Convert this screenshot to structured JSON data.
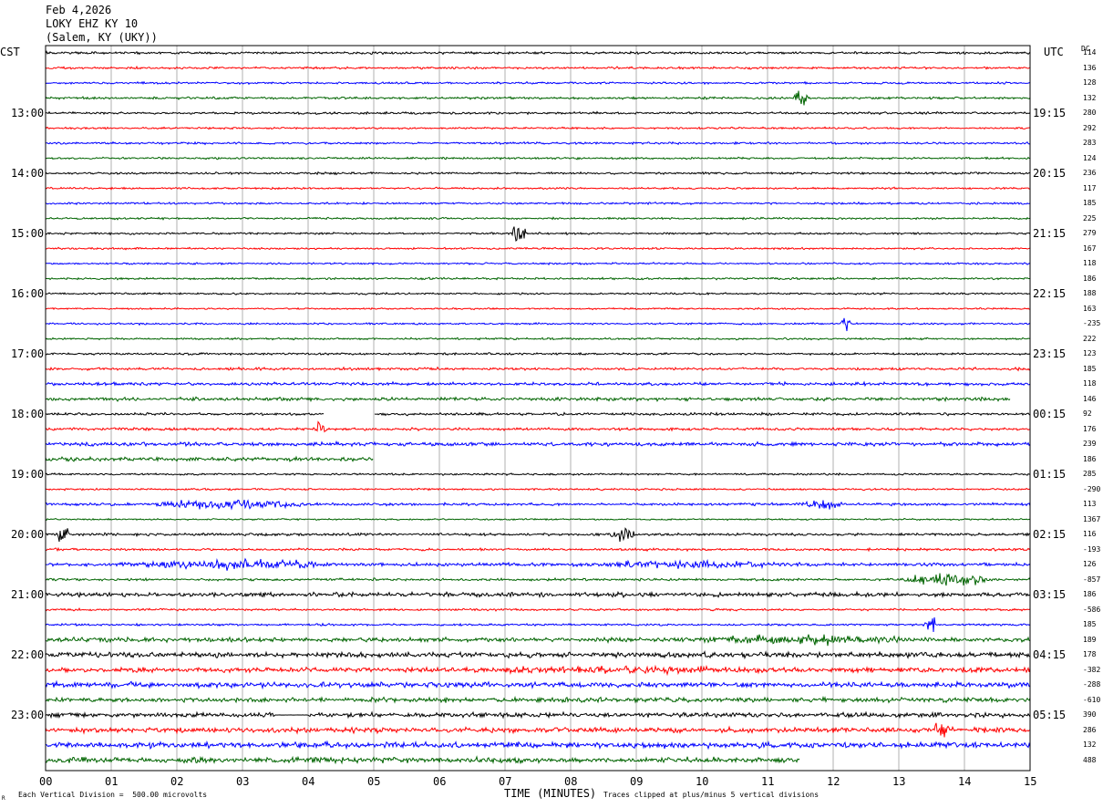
{
  "header": {
    "date": "Feb 4,2026",
    "station": "LOKY EHZ KY 10",
    "location": "(Salem, KY (UKY))"
  },
  "left_tz": "CST",
  "right_tz": "UTC",
  "dc_label": "DC",
  "footer": {
    "vertical_division": "Each Vertical Division =  500.00 microvolts",
    "x_title": "TIME (MINUTES)",
    "clip_note": "Traces clipped at plus/minus 5 vertical divisions",
    "corner_mark": "R"
  },
  "colors": {
    "trace_cycle": [
      "#000000",
      "#ff0000",
      "#0000ff",
      "#006400"
    ],
    "grid": "#b0b0b0",
    "background": "#ffffff"
  },
  "chart_data": {
    "type": "line",
    "subtype": "helicorder",
    "x_range": [
      0,
      15
    ],
    "xticks": [
      "00",
      "01",
      "02",
      "03",
      "04",
      "05",
      "06",
      "07",
      "08",
      "09",
      "10",
      "11",
      "12",
      "13",
      "14",
      "15"
    ],
    "xlabel": "TIME (MINUTES)",
    "row_count": 48,
    "left_time_labels": [
      {
        "row": 4,
        "text": "13:00"
      },
      {
        "row": 8,
        "text": "14:00"
      },
      {
        "row": 12,
        "text": "15:00"
      },
      {
        "row": 16,
        "text": "16:00"
      },
      {
        "row": 20,
        "text": "17:00"
      },
      {
        "row": 24,
        "text": "18:00"
      },
      {
        "row": 28,
        "text": "19:00"
      },
      {
        "row": 32,
        "text": "20:00"
      },
      {
        "row": 36,
        "text": "21:00"
      },
      {
        "row": 40,
        "text": "22:00"
      },
      {
        "row": 44,
        "text": "23:00"
      }
    ],
    "right_time_labels": [
      {
        "row": 4,
        "text": "19:15"
      },
      {
        "row": 8,
        "text": "20:15"
      },
      {
        "row": 12,
        "text": "21:15"
      },
      {
        "row": 16,
        "text": "22:15"
      },
      {
        "row": 20,
        "text": "23:15"
      },
      {
        "row": 24,
        "text": "00:15"
      },
      {
        "row": 28,
        "text": "01:15"
      },
      {
        "row": 32,
        "text": "02:15"
      },
      {
        "row": 36,
        "text": "03:15"
      },
      {
        "row": 40,
        "text": "04:15"
      },
      {
        "row": 44,
        "text": "05:15"
      }
    ],
    "dc_offsets": [
      "114",
      "136",
      "128",
      "132",
      "280",
      "292",
      "283",
      "124",
      "236",
      "117",
      "185",
      "225",
      "279",
      "167",
      "118",
      "186",
      "188",
      "163",
      "-235",
      "222",
      "123",
      "185",
      "118",
      "146",
      "92",
      "176",
      "239",
      "186",
      "285",
      "-290",
      "113",
      "1367",
      "116",
      "-193",
      "126",
      "-857",
      "186",
      "-586",
      "185",
      "189",
      "178",
      "-382",
      "-288",
      "-610",
      "390",
      "286",
      "132",
      "488"
    ],
    "row_noise": [
      0.9,
      0.8,
      0.75,
      0.85,
      0.85,
      0.7,
      0.8,
      0.75,
      0.8,
      0.7,
      0.75,
      0.75,
      0.75,
      0.7,
      0.7,
      0.75,
      0.7,
      0.65,
      0.7,
      0.75,
      0.8,
      1.0,
      1.2,
      1.3,
      1.0,
      1.0,
      1.4,
      1.4,
      0.7,
      0.7,
      1.0,
      0.6,
      1.0,
      0.9,
      1.3,
      0.9,
      1.6,
      0.8,
      0.8,
      1.6,
      2.0,
      1.8,
      2.0,
      1.7,
      1.8,
      1.9,
      2.1,
      2.0
    ],
    "events": [
      {
        "row": 3,
        "start_min": 11.4,
        "end_min": 11.75,
        "amp": 7
      },
      {
        "row": 12,
        "start_min": 7.1,
        "end_min": 7.4,
        "amp": 9
      },
      {
        "row": 18,
        "start_min": 12.1,
        "end_min": 12.35,
        "amp": 7
      },
      {
        "row": 25,
        "start_min": 4.1,
        "end_min": 4.35,
        "amp": 9
      },
      {
        "row": 30,
        "start_min": 1.5,
        "end_min": 5.0,
        "amp": 4
      },
      {
        "row": 30,
        "start_min": 11.4,
        "end_min": 12.5,
        "amp": 4
      },
      {
        "row": 32,
        "start_min": 0.15,
        "end_min": 0.45,
        "amp": 8
      },
      {
        "row": 32,
        "start_min": 8.6,
        "end_min": 9.1,
        "amp": 7
      },
      {
        "row": 34,
        "start_min": 1.0,
        "end_min": 6.0,
        "amp": 4
      },
      {
        "row": 34,
        "start_min": 7.8,
        "end_min": 13.0,
        "amp": 3
      },
      {
        "row": 35,
        "start_min": 13.0,
        "end_min": 15.0,
        "amp": 5
      },
      {
        "row": 38,
        "start_min": 13.4,
        "end_min": 13.65,
        "amp": 7
      },
      {
        "row": 39,
        "start_min": 9.4,
        "end_min": 15.0,
        "amp": 4
      },
      {
        "row": 41,
        "start_min": 5.2,
        "end_min": 15.0,
        "amp": 3
      },
      {
        "row": 45,
        "start_min": 13.5,
        "end_min": 13.9,
        "amp": 8
      }
    ],
    "gaps": [
      {
        "row": 24,
        "start_min": 4.25,
        "end_min": 5.0
      },
      {
        "row": 27,
        "start_min": 5.0,
        "end_min": 15.0
      },
      {
        "row": 47,
        "start_min": 11.5,
        "end_min": 15.0
      }
    ],
    "flat_segments": [
      {
        "row": 44,
        "start_min": 3.5,
        "end_min": 4.0
      }
    ],
    "ends": [
      {
        "row": 23,
        "end_min": 14.7
      },
      {
        "row": 26,
        "end_min": 15.0
      }
    ]
  }
}
